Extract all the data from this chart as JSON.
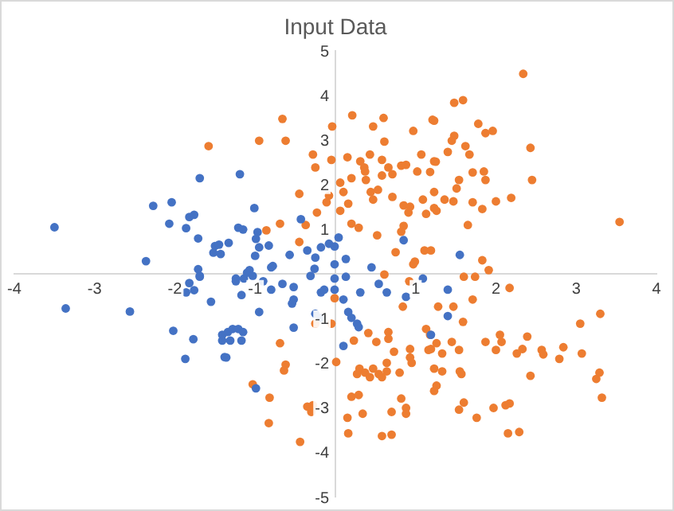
{
  "chart_data": {
    "type": "scatter",
    "title": "Input Data",
    "xlim": [
      -4,
      4
    ],
    "xticks": [
      -4,
      -3,
      -2,
      -1,
      1,
      2,
      3,
      4
    ],
    "ylim": [
      -5,
      5
    ],
    "yticks": [
      -5,
      -4,
      -3,
      -2,
      -1,
      1,
      2,
      3,
      4,
      5
    ],
    "grid": false,
    "legend": false,
    "marker": "circle",
    "series": [
      {
        "color": "#4472c4",
        "x": [
          -3.5,
          -3.36,
          -2.56,
          -2.36,
          -1.69,
          -2.27,
          -2.04,
          -2.07,
          -1.82,
          -1.76,
          -1.86,
          -1.71,
          -1.5,
          -1.52,
          -1.43,
          -1.71,
          -1.69,
          -1.82,
          -1.86,
          -1.76,
          -1.69,
          -1.55,
          -2.02,
          -1.77,
          -1.87,
          -1.41,
          -1.41,
          -1.38,
          -1.19,
          -1.01,
          -1.21,
          -1.15,
          -0.97,
          -0.43,
          -1.33,
          -1.45,
          -0.99,
          -0.95,
          -1.0,
          -0.83,
          -0.57,
          -0.35,
          -0.25,
          -0.18,
          -0.08,
          -0.01,
          0.04,
          0.13,
          -0.01,
          -0.78,
          0.85,
          0.45,
          -0.26,
          -0.31,
          -1.1,
          -1.24,
          -1.07,
          -1.03,
          -1.14,
          -1.24,
          -1.17,
          -0.8,
          -0.9,
          -0.8,
          -0.66,
          -0.52,
          -0.52,
          -0.54,
          -0.95,
          -1.34,
          -1.28,
          -1.21,
          -1.15,
          -1.31,
          -1.17,
          -1.36,
          -0.99,
          -0.52,
          -0.18,
          -0.14,
          -0.25,
          -0.18,
          -0.01,
          0.13,
          -0.01,
          0.1,
          0.16,
          0.2,
          0.27,
          0.29,
          0.1,
          0.31,
          0.54,
          0.64,
          0.88,
          1.09,
          1.4,
          1.4,
          1.19,
          1.55
        ],
        "values": [
          1.04,
          -0.78,
          -0.85,
          0.28,
          2.14,
          1.52,
          1.6,
          1.12,
          1.27,
          1.32,
          1.02,
          0.79,
          0.62,
          0.47,
          0.44,
          0.1,
          -0.05,
          -0.21,
          -0.42,
          -0.37,
          -0.07,
          -0.63,
          -1.28,
          -1.47,
          -1.91,
          -1.37,
          -1.5,
          -1.87,
          2.23,
          1.47,
          1.03,
          0.99,
          0.93,
          1.22,
          0.69,
          0.65,
          0.78,
          0.59,
          0.4,
          0.63,
          0.42,
          0.52,
          0.36,
          0.59,
          0.67,
          0.61,
          0.81,
          0.33,
          0.21,
          0.17,
          0.75,
          0.14,
          0.11,
          -0.05,
          0.02,
          -0.11,
          0.08,
          -0.05,
          -0.11,
          -0.17,
          -0.48,
          0.14,
          -0.17,
          -0.36,
          -0.23,
          -0.3,
          -0.58,
          -0.67,
          -0.86,
          -1.31,
          -1.24,
          -1.24,
          -1.31,
          -1.5,
          -1.5,
          -1.88,
          -2.57,
          -1.21,
          -0.42,
          -0.36,
          -0.9,
          -0.99,
          -0.11,
          -0.07,
          -0.36,
          -0.58,
          -0.86,
          -0.99,
          -1.12,
          -1.2,
          -1.62,
          -0.42,
          -0.23,
          -0.42,
          -0.52,
          -0.11,
          -0.36,
          -0.95,
          -1.37,
          0.42
        ]
      },
      {
        "color": "#ed7d31",
        "x": [
          -1.58,
          -0.66,
          -0.95,
          -0.62,
          -0.04,
          0.21,
          0.47,
          0.6,
          0.61,
          0.97,
          1.21,
          -0.28,
          -0.25,
          -0.05,
          0.15,
          0.31,
          0.36,
          0.43,
          0.58,
          1.07,
          1.23,
          0.06,
          0.2,
          0.37,
          0.38,
          0.58,
          0.66,
          0.71,
          0.82,
          0.88,
          1.02,
          1.18,
          -0.45,
          -0.08,
          -0.11,
          0.1,
          0.16,
          0.44,
          0.47,
          0.53,
          0.71,
          0.85,
          0.91,
          0.93,
          1.09,
          1.13,
          1.23,
          -0.23,
          0.06,
          -0.37,
          -0.69,
          -0.86,
          -0.45,
          0.2,
          0.29,
          0.52,
          0.82,
          0.85,
          0.75,
          0.99,
          1.11,
          1.19,
          0.61,
          2.34,
          1.48,
          1.59,
          1.23,
          1.78,
          1.87,
          1.96,
          2.43,
          1.48,
          1.45,
          1.62,
          1.4,
          1.67,
          1.25,
          1.71,
          1.85,
          1.87,
          1.54,
          1.51,
          1.23,
          1.36,
          1.47,
          1.26,
          1.71,
          1.83,
          2.0,
          2.19,
          2.45,
          1.65,
          3.54,
          1.83,
          1.91,
          1.6,
          1.74,
          2.17,
          1.28,
          1.47,
          1.71,
          1.59,
          3.05,
          3.3,
          1.26,
          1.45,
          1.54,
          1.33,
          1.19,
          1.87,
          2.05,
          2.07,
          2.0,
          2.39,
          2.33,
          2.26,
          2.57,
          2.59,
          2.84,
          2.79,
          3.07,
          2.43,
          3.29,
          3.25,
          3.32,
          1.23,
          1.33,
          1.26,
          1.55,
          1.57,
          1.23,
          1.6,
          1.54,
          1.76,
          1.97,
          2.12,
          2.17,
          2.15,
          2.29,
          0.92,
          0.97,
          0.84,
          1.13,
          1.18,
          -0.01,
          -0.25,
          -0.05,
          -0.69,
          -0.62,
          -0.64,
          0.01,
          0.23,
          0.41,
          0.51,
          0.66,
          0.66,
          0.73,
          0.93,
          0.93,
          0.95,
          1.16,
          0.3,
          0.27,
          0.37,
          0.47,
          0.43,
          0.54,
          0.64,
          0.64,
          0.8,
          0.58,
          -1.03,
          -0.82,
          -0.83,
          -0.35,
          -0.3,
          -0.28,
          -0.44,
          0.2,
          0.29,
          0.34,
          0.15,
          0.16,
          0.58,
          0.7,
          0.82,
          0.88,
          0.88,
          0.7
        ],
        "values": [
          2.86,
          3.47,
          2.98,
          2.98,
          3.3,
          3.55,
          3.3,
          3.49,
          2.96,
          3.2,
          3.45,
          2.67,
          2.38,
          2.55,
          2.61,
          2.52,
          2.38,
          2.67,
          2.55,
          2.67,
          2.52,
          2.04,
          2.14,
          2.29,
          2.1,
          2.2,
          2.38,
          2.23,
          2.42,
          2.44,
          2.29,
          2.28,
          1.79,
          1.75,
          1.6,
          1.83,
          1.57,
          1.83,
          1.66,
          1.88,
          1.72,
          1.53,
          1.37,
          1.5,
          1.66,
          1.34,
          1.47,
          1.37,
          1.41,
          1.09,
          1.12,
          0.97,
          0.71,
          1.12,
          1.03,
          0.86,
          0.94,
          1.07,
          0.48,
          0.27,
          0.52,
          0.52,
          -0.02,
          4.48,
          3.83,
          3.89,
          3.43,
          3.36,
          3.15,
          3.2,
          2.82,
          3.09,
          2.98,
          2.86,
          2.73,
          2.67,
          2.51,
          2.27,
          2.29,
          2.1,
          2.1,
          1.91,
          1.83,
          1.66,
          1.62,
          1.41,
          1.6,
          1.45,
          1.62,
          1.7,
          2.1,
          1.09,
          1.16,
          0.3,
          0.08,
          -0.07,
          -0.07,
          -0.32,
          -0.74,
          -0.74,
          -0.58,
          -1.08,
          -1.12,
          -0.9,
          -1.56,
          -1.53,
          -1.71,
          -1.79,
          -1.69,
          -1.53,
          -1.37,
          -1.53,
          -1.71,
          -1.41,
          -1.69,
          -1.79,
          -1.71,
          -1.81,
          -1.65,
          -1.91,
          -1.79,
          -2.29,
          -2.22,
          -2.36,
          -2.78,
          -2.13,
          -2.19,
          -2.51,
          -2.19,
          -2.25,
          -2.63,
          -2.89,
          -3.05,
          -3.23,
          -3.01,
          -2.95,
          -2.91,
          -3.58,
          -3.55,
          -0.17,
          0.21,
          -0.74,
          -1.24,
          -1.37,
          -0.55,
          -1.12,
          -1.12,
          -1.56,
          -2.04,
          -2.17,
          -1.98,
          -1.5,
          -1.33,
          -1.53,
          -1.31,
          -1.46,
          -1.75,
          -1.69,
          -1.88,
          -2.0,
          -1.71,
          -2.13,
          -2.25,
          -2.22,
          -2.13,
          -2.32,
          -2.25,
          -2.19,
          -2.0,
          -2.22,
          -2.32,
          -2.48,
          -2.78,
          -3.35,
          -2.98,
          -3.1,
          -2.95,
          -3.77,
          -2.76,
          -2.72,
          -3.14,
          -3.23,
          -3.58,
          -3.64,
          -3.61,
          -2.8,
          -3.01,
          -3.14,
          -3.1
        ]
      }
    ]
  }
}
